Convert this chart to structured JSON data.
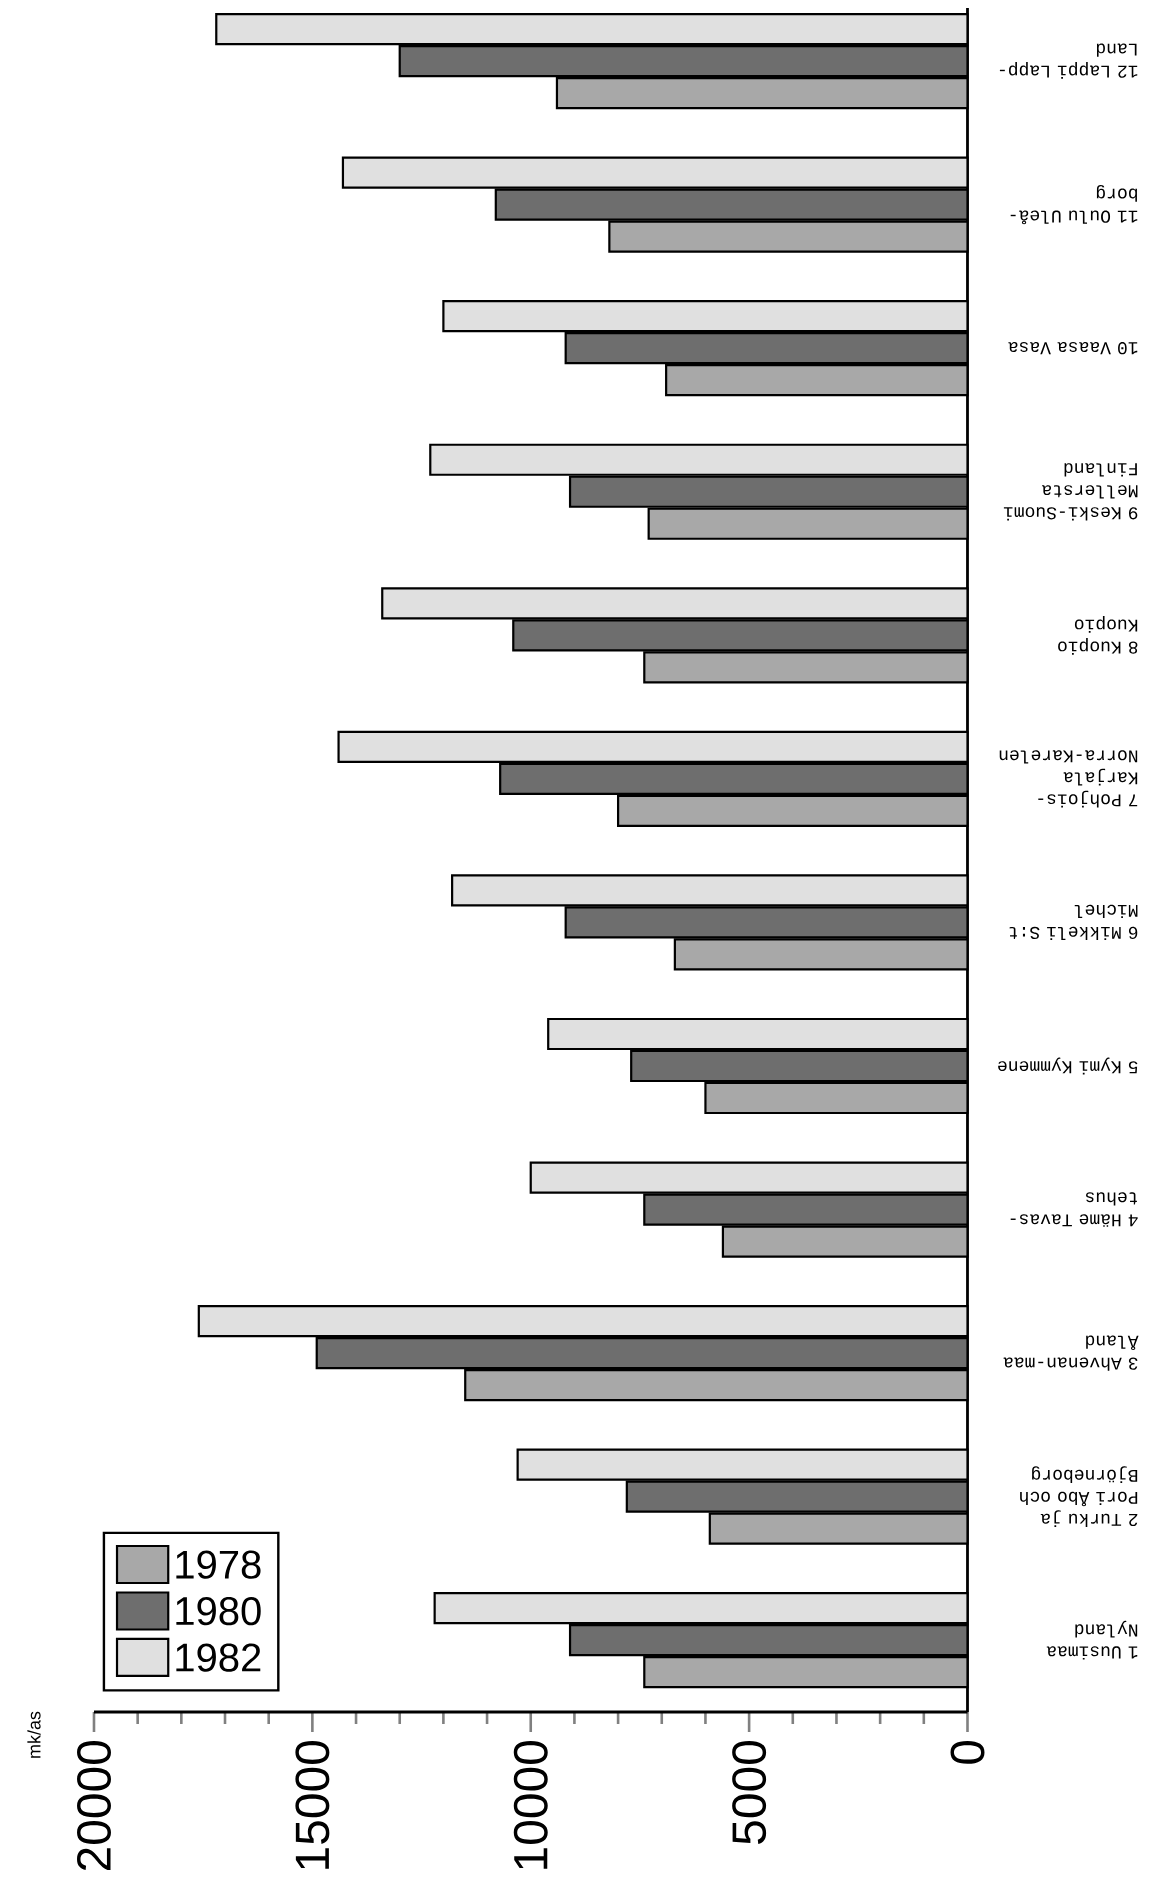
{
  "chart_data": {
    "type": "bar",
    "orientation": "horizontal",
    "annotations": [
      "mk/as"
    ],
    "categories": [
      "12 Lappi Lapp-Land",
      "11 Oulu Uleå-borg",
      "10 Vaasa Vasa",
      "9 Keski-Suomi Mellersta Finland",
      "8 Kuopio Kuopio",
      "7 Pohjois-Karjala Norra-Karelen",
      "6 Mikkeli S:t Michel",
      "5 Kymi Kymmene",
      "4 Häme Tavas-tehus",
      "3 Ahvenan-maa Åland",
      "2 Turku ja Pori Åbo och Björneborg",
      "1 Uusimaa Nyland"
    ],
    "series": [
      {
        "name": "1978",
        "color": "#a8a8a8",
        "values": [
          9400,
          8200,
          6900,
          7300,
          7400,
          8000,
          6700,
          6000,
          5600,
          11500,
          5900,
          7400
        ]
      },
      {
        "name": "1980",
        "color": "#6e6e6e",
        "values": [
          13000,
          10800,
          9200,
          9100,
          10400,
          10700,
          9200,
          7700,
          7400,
          14900,
          7800,
          9100
        ]
      },
      {
        "name": "1982",
        "color": "#e0e0e0",
        "values": [
          17200,
          14300,
          12000,
          12300,
          13400,
          14400,
          11800,
          9600,
          10000,
          17600,
          10300,
          12200
        ]
      }
    ],
    "xlim": [
      20000,
      0
    ],
    "xticks": [
      0,
      5000,
      10000,
      15000,
      20000
    ],
    "legend": "bottom left"
  }
}
